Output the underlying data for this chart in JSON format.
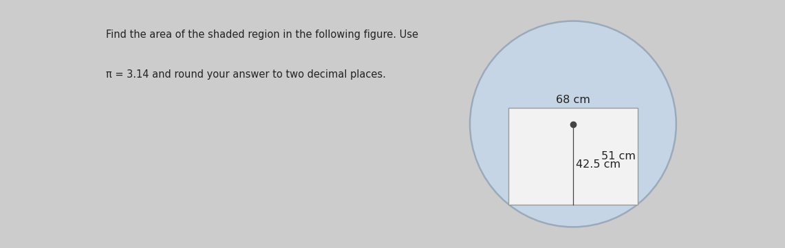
{
  "text_line1": "Find the area of the shaded region in the following figure. Use",
  "text_line2": "π = 3.14 and round your answer to two decimal places.",
  "rect_width_label": "68 cm",
  "rect_height_label": "51 cm",
  "radius_label": "42.5 cm",
  "circle_fill_color": "#c5d5e5",
  "circle_edge_color": "#9aaabb",
  "rect_fill_color": "#f2f2f2",
  "rect_edge_color": "#999999",
  "bg_color": "#cccccc",
  "text_color": "#222222",
  "center_dot_color": "#444444",
  "fig_width": 11.41,
  "fig_height": 3.61,
  "text_fontsize": 10.5,
  "label_fontsize": 11.5
}
